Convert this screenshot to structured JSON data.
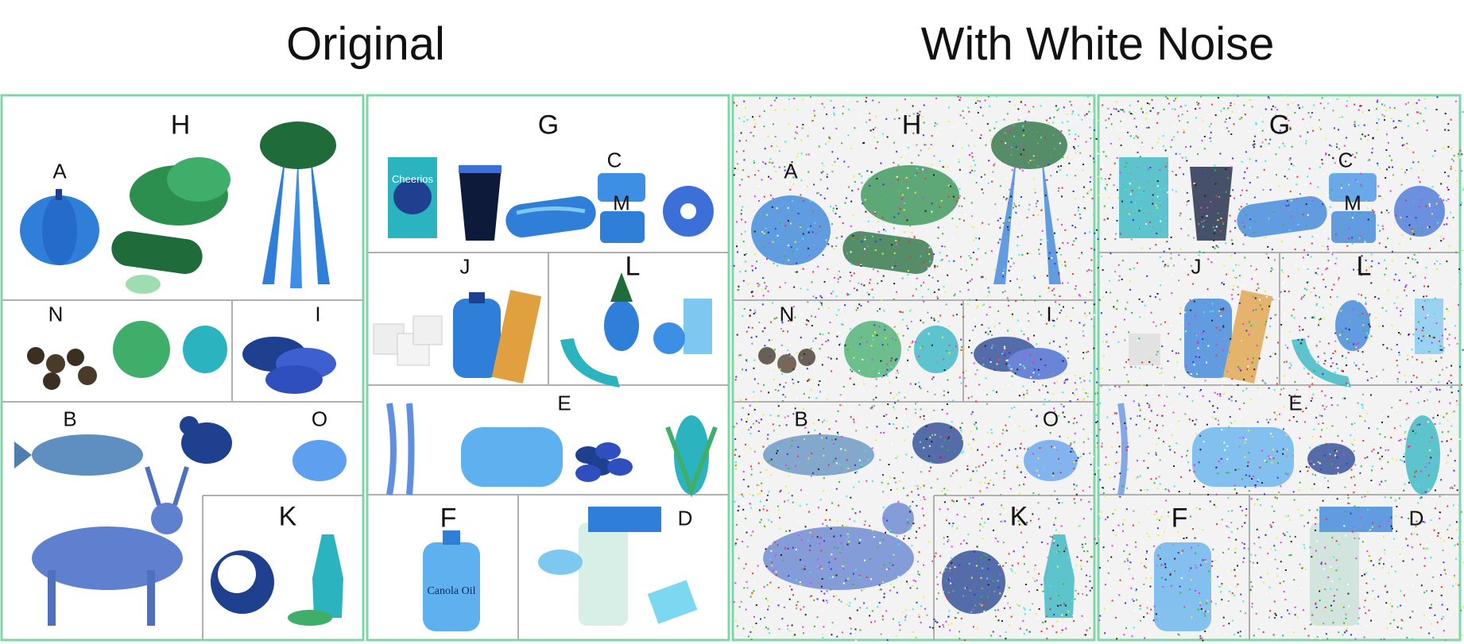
{
  "titles": {
    "left": "Original",
    "right": "With White Noise"
  },
  "labels": {
    "H": "H",
    "G": "G",
    "A": "A",
    "C": "C",
    "M": "M",
    "J": "J",
    "L": "L",
    "N": "N",
    "I": "I",
    "E": "E",
    "B": "B",
    "O": "O",
    "K": "K",
    "F": "F",
    "D": "D"
  },
  "product_text": {
    "cereal": "Cheerios",
    "oil": "Canola Oil"
  },
  "colors": {
    "frame": "#7fd6a8",
    "divider": "#b0b0b0",
    "blue_main": "#2f7fd9",
    "blue_dark": "#1f3f8f",
    "blue_light": "#7cc8f0",
    "teal": "#2bb3c0",
    "green": "#3fae6a",
    "dark_green": "#1f6b3a"
  },
  "icons": {
    "pumpkin": "pumpkin-icon",
    "spinach": "spinach-icon",
    "cucumber": "cucumber-icon",
    "carrots": "carrots-icon",
    "cereal": "cereal-box-icon",
    "soda": "soda-glass-icon",
    "hotdog": "hotdog-icon",
    "chips": "chips-bag-icon",
    "donut": "donut-icon",
    "sugar": "sugar-cubes-icon",
    "syrup": "syrup-bottle-icon",
    "bar": "granola-bar-icon",
    "banana": "banana-icon",
    "pineapple": "pineapple-icon",
    "juice": "juice-glass-icon",
    "allspice": "allspice-icon",
    "apple": "apple-icon",
    "lime": "lime-icon",
    "pecans": "pecans-icon",
    "fish": "fish-icon",
    "chicken": "chicken-icon",
    "egg": "egg-icon",
    "deer": "deer-icon",
    "coconut": "coconut-icon",
    "olive_oil": "olive-oil-icon",
    "wheat": "wheat-icon",
    "bread": "bread-icon",
    "beans": "beans-icon",
    "corn": "corn-icon",
    "canola": "canola-bottle-icon",
    "milk": "milk-glass-icon",
    "butter": "butter-icon"
  }
}
